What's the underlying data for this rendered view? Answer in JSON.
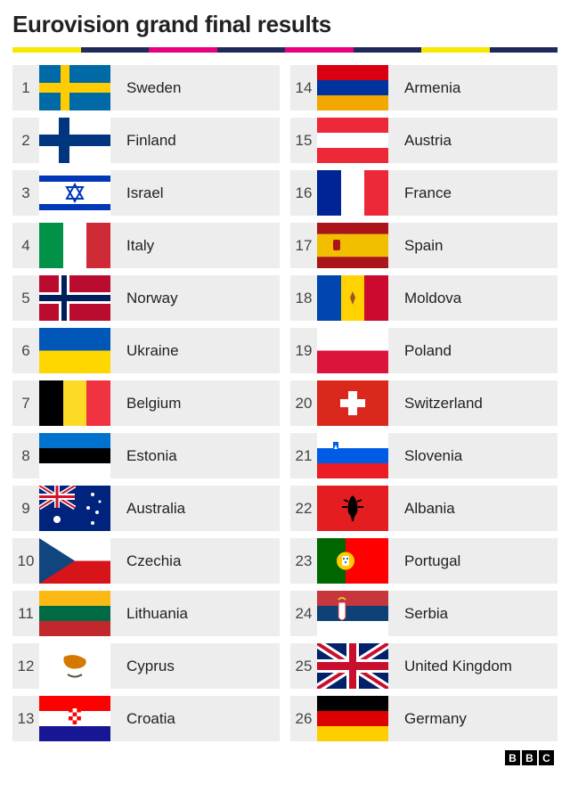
{
  "title": "Eurovision grand final results",
  "stripe_colors": [
    "#f7e800",
    "#1f2a5a",
    "#e6007e",
    "#1f2a5a",
    "#e6007e",
    "#1f2a5a",
    "#f7e800",
    "#1f2a5a"
  ],
  "footer_logo": [
    "B",
    "B",
    "C"
  ],
  "results": [
    {
      "rank": 1,
      "country": "Sweden",
      "flag": "sweden"
    },
    {
      "rank": 2,
      "country": "Finland",
      "flag": "finland"
    },
    {
      "rank": 3,
      "country": "Israel",
      "flag": "israel"
    },
    {
      "rank": 4,
      "country": "Italy",
      "flag": "italy"
    },
    {
      "rank": 5,
      "country": "Norway",
      "flag": "norway"
    },
    {
      "rank": 6,
      "country": "Ukraine",
      "flag": "ukraine"
    },
    {
      "rank": 7,
      "country": "Belgium",
      "flag": "belgium"
    },
    {
      "rank": 8,
      "country": "Estonia",
      "flag": "estonia"
    },
    {
      "rank": 9,
      "country": "Australia",
      "flag": "australia"
    },
    {
      "rank": 10,
      "country": "Czechia",
      "flag": "czechia"
    },
    {
      "rank": 11,
      "country": "Lithuania",
      "flag": "lithuania"
    },
    {
      "rank": 12,
      "country": "Cyprus",
      "flag": "cyprus"
    },
    {
      "rank": 13,
      "country": "Croatia",
      "flag": "croatia"
    },
    {
      "rank": 14,
      "country": "Armenia",
      "flag": "armenia"
    },
    {
      "rank": 15,
      "country": "Austria",
      "flag": "austria"
    },
    {
      "rank": 16,
      "country": "France",
      "flag": "france"
    },
    {
      "rank": 17,
      "country": "Spain",
      "flag": "spain"
    },
    {
      "rank": 18,
      "country": "Moldova",
      "flag": "moldova"
    },
    {
      "rank": 19,
      "country": "Poland",
      "flag": "poland"
    },
    {
      "rank": 20,
      "country": "Switzerland",
      "flag": "switzerland"
    },
    {
      "rank": 21,
      "country": "Slovenia",
      "flag": "slovenia"
    },
    {
      "rank": 22,
      "country": "Albania",
      "flag": "albania"
    },
    {
      "rank": 23,
      "country": "Portugal",
      "flag": "portugal"
    },
    {
      "rank": 24,
      "country": "Serbia",
      "flag": "serbia"
    },
    {
      "rank": 25,
      "country": "United Kingdom",
      "flag": "uk"
    },
    {
      "rank": 26,
      "country": "Germany",
      "flag": "germany"
    }
  ],
  "flag_styles": {
    "row_background": "#ededed",
    "flag_width": 80,
    "flag_height": 51
  }
}
